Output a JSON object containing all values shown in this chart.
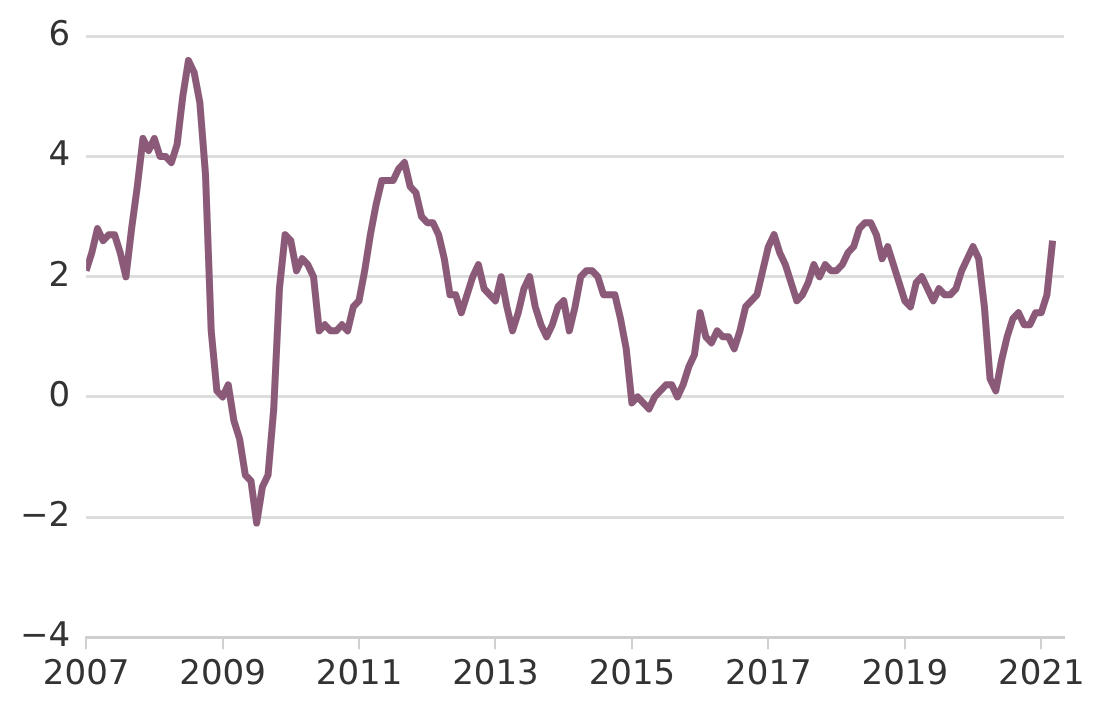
{
  "chart_data": {
    "type": "line",
    "x": [
      "2007-01",
      "2007-02",
      "2007-03",
      "2007-04",
      "2007-05",
      "2007-06",
      "2007-07",
      "2007-08",
      "2007-09",
      "2007-10",
      "2007-11",
      "2007-12",
      "2008-01",
      "2008-02",
      "2008-03",
      "2008-04",
      "2008-05",
      "2008-06",
      "2008-07",
      "2008-08",
      "2008-09",
      "2008-10",
      "2008-11",
      "2008-12",
      "2009-01",
      "2009-02",
      "2009-03",
      "2009-04",
      "2009-05",
      "2009-06",
      "2009-07",
      "2009-08",
      "2009-09",
      "2009-10",
      "2009-11",
      "2009-12",
      "2010-01",
      "2010-02",
      "2010-03",
      "2010-04",
      "2010-05",
      "2010-06",
      "2010-07",
      "2010-08",
      "2010-09",
      "2010-10",
      "2010-11",
      "2010-12",
      "2011-01",
      "2011-02",
      "2011-03",
      "2011-04",
      "2011-05",
      "2011-06",
      "2011-07",
      "2011-08",
      "2011-09",
      "2011-10",
      "2011-11",
      "2011-12",
      "2012-01",
      "2012-02",
      "2012-03",
      "2012-04",
      "2012-05",
      "2012-06",
      "2012-07",
      "2012-08",
      "2012-09",
      "2012-10",
      "2012-11",
      "2012-12",
      "2013-01",
      "2013-02",
      "2013-03",
      "2013-04",
      "2013-05",
      "2013-06",
      "2013-07",
      "2013-08",
      "2013-09",
      "2013-10",
      "2013-11",
      "2013-12",
      "2014-01",
      "2014-02",
      "2014-03",
      "2014-04",
      "2014-05",
      "2014-06",
      "2014-07",
      "2014-08",
      "2014-09",
      "2014-10",
      "2014-11",
      "2014-12",
      "2015-01",
      "2015-02",
      "2015-03",
      "2015-04",
      "2015-05",
      "2015-06",
      "2015-07",
      "2015-08",
      "2015-09",
      "2015-10",
      "2015-11",
      "2015-12",
      "2016-01",
      "2016-02",
      "2016-03",
      "2016-04",
      "2016-05",
      "2016-06",
      "2016-07",
      "2016-08",
      "2016-09",
      "2016-10",
      "2016-11",
      "2016-12",
      "2017-01",
      "2017-02",
      "2017-03",
      "2017-04",
      "2017-05",
      "2017-06",
      "2017-07",
      "2017-08",
      "2017-09",
      "2017-10",
      "2017-11",
      "2017-12",
      "2018-01",
      "2018-02",
      "2018-03",
      "2018-04",
      "2018-05",
      "2018-06",
      "2018-07",
      "2018-08",
      "2018-09",
      "2018-10",
      "2018-11",
      "2018-12",
      "2019-01",
      "2019-02",
      "2019-03",
      "2019-04",
      "2019-05",
      "2019-06",
      "2019-07",
      "2019-08",
      "2019-09",
      "2019-10",
      "2019-11",
      "2019-12",
      "2020-01",
      "2020-02",
      "2020-03",
      "2020-04",
      "2020-05",
      "2020-06",
      "2020-07",
      "2020-08",
      "2020-09",
      "2020-10",
      "2020-11",
      "2020-12",
      "2021-01",
      "2021-02",
      "2021-03"
    ],
    "series": [
      {
        "color": "#8a5a78",
        "values": [
          2.1,
          2.4,
          2.8,
          2.6,
          2.7,
          2.7,
          2.4,
          2.0,
          2.8,
          3.5,
          4.3,
          4.1,
          4.3,
          4.0,
          4.0,
          3.9,
          4.2,
          5.0,
          5.6,
          5.4,
          4.9,
          3.7,
          1.1,
          0.1,
          0.0,
          0.2,
          -0.4,
          -0.7,
          -1.3,
          -1.4,
          -2.1,
          -1.5,
          -1.3,
          -0.2,
          1.8,
          2.7,
          2.6,
          2.1,
          2.3,
          2.2,
          2.0,
          1.1,
          1.2,
          1.1,
          1.1,
          1.2,
          1.1,
          1.5,
          1.6,
          2.1,
          2.7,
          3.2,
          3.6,
          3.6,
          3.6,
          3.8,
          3.9,
          3.5,
          3.4,
          3.0,
          2.9,
          2.9,
          2.7,
          2.3,
          1.7,
          1.7,
          1.4,
          1.7,
          2.0,
          2.2,
          1.8,
          1.7,
          1.6,
          2.0,
          1.5,
          1.1,
          1.4,
          1.8,
          2.0,
          1.5,
          1.2,
          1.0,
          1.2,
          1.5,
          1.6,
          1.1,
          1.5,
          2.0,
          2.1,
          2.1,
          2.0,
          1.7,
          1.7,
          1.7,
          1.3,
          0.8,
          -0.1,
          0.0,
          -0.1,
          -0.2,
          0.0,
          0.1,
          0.2,
          0.2,
          0.0,
          0.2,
          0.5,
          0.7,
          1.4,
          1.0,
          0.9,
          1.1,
          1.0,
          1.0,
          0.8,
          1.1,
          1.5,
          1.6,
          1.7,
          2.1,
          2.5,
          2.7,
          2.4,
          2.2,
          1.9,
          1.6,
          1.7,
          1.9,
          2.2,
          2.0,
          2.2,
          2.1,
          2.1,
          2.2,
          2.4,
          2.5,
          2.8,
          2.9,
          2.9,
          2.7,
          2.3,
          2.5,
          2.2,
          1.9,
          1.6,
          1.5,
          1.9,
          2.0,
          1.8,
          1.6,
          1.8,
          1.7,
          1.7,
          1.8,
          2.1,
          2.3,
          2.5,
          2.3,
          1.5,
          0.3,
          0.1,
          0.6,
          1.0,
          1.3,
          1.4,
          1.2,
          1.2,
          1.4,
          1.4,
          1.7,
          2.6
        ]
      }
    ],
    "xlim": [
      "2007-01",
      "2021-05"
    ],
    "xticks": [
      {
        "value": "2007-01",
        "label": "2007"
      },
      {
        "value": "2009-01",
        "label": "2009"
      },
      {
        "value": "2011-01",
        "label": "2011"
      },
      {
        "value": "2013-01",
        "label": "2013"
      },
      {
        "value": "2015-01",
        "label": "2015"
      },
      {
        "value": "2017-01",
        "label": "2017"
      },
      {
        "value": "2019-01",
        "label": "2019"
      },
      {
        "value": "2021-01",
        "label": "2021"
      }
    ],
    "ylim": [
      -4,
      6
    ],
    "yticks": [
      -4,
      -2,
      0,
      2,
      4,
      6
    ],
    "grid": "y",
    "legend": false
  }
}
